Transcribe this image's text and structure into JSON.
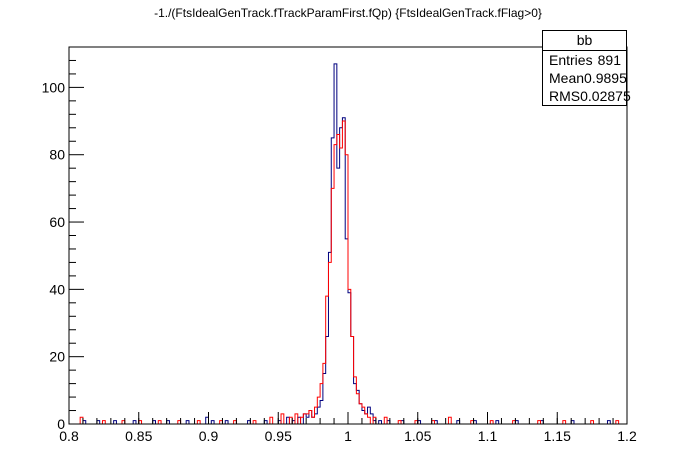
{
  "title": "-1./(FtsIdealGenTrack.fTrackParamFirst.fQp) {FtsIdealGenTrack.fFlag>0}",
  "stats": {
    "name": "bb",
    "rows": [
      {
        "label": "Entries",
        "value": "891"
      },
      {
        "label": "Mean",
        "value": "0.9895"
      },
      {
        "label": "RMS",
        "value": "0.02875"
      }
    ]
  },
  "chart_data": {
    "type": "histogram",
    "title": "-1./(FtsIdealGenTrack.fTrackParamFirst.fQp) {FtsIdealGenTrack.fFlag>0}",
    "xlabel": "",
    "ylabel": "",
    "xlim": [
      0.8,
      1.2
    ],
    "ylim": [
      0,
      112
    ],
    "grid": false,
    "legend": "top-right",
    "x_ticks": [
      "0.8",
      "0.85",
      "0.9",
      "0.95",
      "1",
      "1.05",
      "1.1",
      "1.15",
      "1.2"
    ],
    "x_tick_values": [
      0.8,
      0.85,
      0.9,
      0.95,
      1.0,
      1.05,
      1.1,
      1.15,
      1.2
    ],
    "y_ticks": [
      "0",
      "20",
      "40",
      "60",
      "80",
      "100"
    ],
    "y_tick_values": [
      0,
      20,
      40,
      60,
      80,
      100
    ],
    "bin_edges_start": 0.8,
    "bin_width": 0.002,
    "series": [
      {
        "color": "#00007f",
        "bin_centers": [
          0.811,
          0.821,
          0.833,
          0.847,
          0.861,
          0.871,
          0.885,
          0.899,
          0.903,
          0.913,
          0.929,
          0.941,
          0.951,
          0.957,
          0.961,
          0.965,
          0.969,
          0.971,
          0.973,
          0.975,
          0.977,
          0.979,
          0.981,
          0.983,
          0.985,
          0.987,
          0.989,
          0.991,
          0.993,
          0.995,
          0.997,
          0.999,
          1.001,
          1.003,
          1.005,
          1.007,
          1.009,
          1.011,
          1.013,
          1.015,
          1.017,
          1.019,
          1.023,
          1.029,
          1.039,
          1.051,
          1.063,
          1.079,
          1.091,
          1.107,
          1.121,
          1.139,
          1.161,
          1.187
        ],
        "counts": [
          1,
          1,
          1,
          1,
          1,
          1,
          1,
          2,
          1,
          1,
          1,
          1,
          1,
          2,
          1,
          2,
          3,
          2,
          4,
          2,
          3,
          5,
          7,
          15,
          26,
          51,
          85,
          107,
          76,
          88,
          91,
          55,
          39,
          26,
          12,
          10,
          6,
          4,
          3,
          5,
          3,
          1,
          1,
          1,
          1,
          1,
          1,
          1,
          1,
          1,
          1,
          1,
          1,
          1
        ]
      },
      {
        "color": "#ff0000",
        "bin_centers": [
          0.809,
          0.825,
          0.839,
          0.851,
          0.865,
          0.879,
          0.893,
          0.909,
          0.919,
          0.933,
          0.945,
          0.953,
          0.959,
          0.963,
          0.967,
          0.969,
          0.971,
          0.973,
          0.975,
          0.977,
          0.979,
          0.981,
          0.983,
          0.985,
          0.987,
          0.989,
          0.991,
          0.993,
          0.995,
          0.997,
          0.999,
          1.001,
          1.003,
          1.005,
          1.007,
          1.009,
          1.011,
          1.013,
          1.015,
          1.019,
          1.027,
          1.037,
          1.049,
          1.061,
          1.073,
          1.089,
          1.103,
          1.119,
          1.137,
          1.155,
          1.175,
          1.193
        ],
        "counts": [
          2,
          1,
          1,
          1,
          1,
          1,
          1,
          1,
          1,
          1,
          2,
          3,
          2,
          3,
          2,
          3,
          3,
          4,
          2,
          5,
          8,
          12,
          18,
          38,
          48,
          70,
          83,
          86,
          82,
          90,
          80,
          40,
          26,
          14,
          9,
          6,
          5,
          3,
          2,
          2,
          2,
          1,
          1,
          1,
          2,
          1,
          1,
          1,
          1,
          1,
          1,
          1
        ]
      }
    ]
  }
}
